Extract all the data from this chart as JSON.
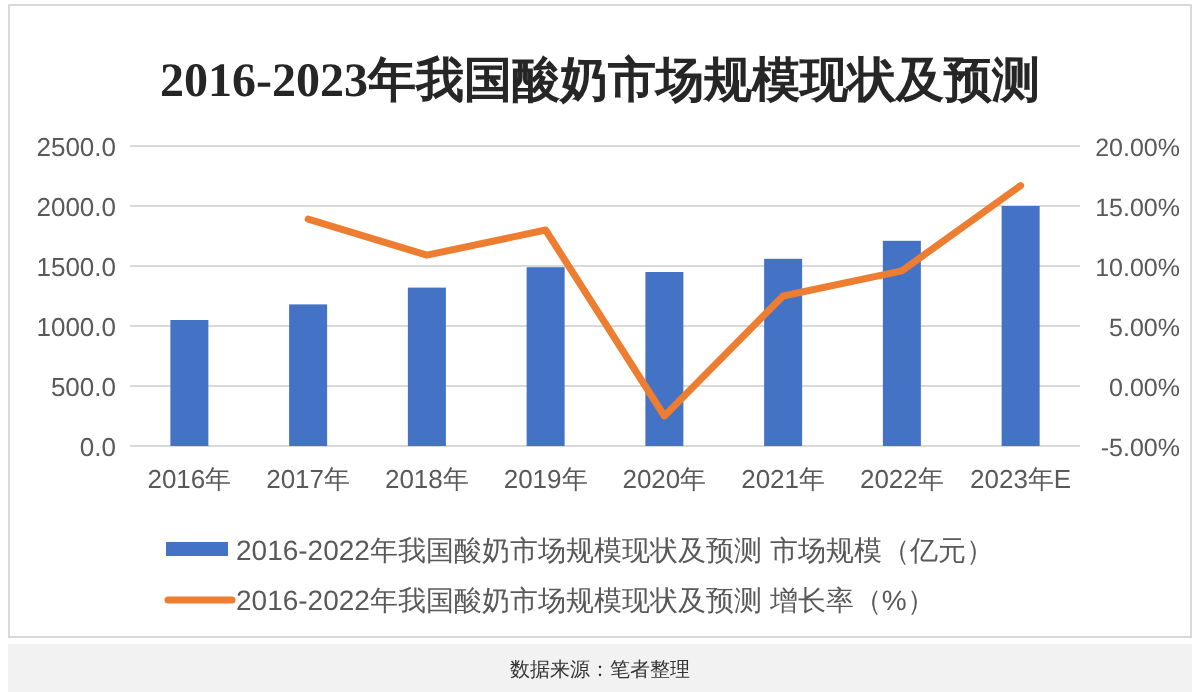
{
  "chart_data": {
    "type": "bar",
    "title": "2016-2023年我国酸奶市场规模现状及预测",
    "categories": [
      "2016年",
      "2017年",
      "2018年",
      "2019年",
      "2020年",
      "2021年",
      "2022年",
      "2023年E"
    ],
    "series": [
      {
        "name": "2016-2022年我国酸奶市场规模现状及预测 市场规模（亿元）",
        "color": "#4472c4",
        "values": [
          1050,
          1180,
          1320,
          1490,
          1450,
          1560,
          1710,
          2000
        ]
      },
      {
        "name": "2016-2022年我国酸奶市场规模现状及预测 增长率（%）",
        "type": "line",
        "axis": "y2",
        "color": "#ed7d31",
        "values": [
          null,
          13.9,
          10.9,
          13.0,
          -2.5,
          7.5,
          9.6,
          16.7
        ]
      }
    ],
    "ylim": [
      0,
      2500
    ],
    "yticks": [
      {
        "value": 0,
        "label": "0.0"
      },
      {
        "value": 500,
        "label": "500.0"
      },
      {
        "value": 1000,
        "label": "1000.0"
      },
      {
        "value": 1500,
        "label": "1500.0"
      },
      {
        "value": 2000,
        "label": "2000.0"
      },
      {
        "value": 2500,
        "label": "2500.0"
      }
    ],
    "y2lim": [
      -5,
      20
    ],
    "y2ticks": [
      {
        "value": -5,
        "label": "-5.00%"
      },
      {
        "value": 0,
        "label": "0.00%"
      },
      {
        "value": 5,
        "label": "5.00%"
      },
      {
        "value": 10,
        "label": "10.00%"
      },
      {
        "value": 15,
        "label": "15.00%"
      },
      {
        "value": 20,
        "label": "20.00%"
      }
    ],
    "grid": "y",
    "legend": "bottom",
    "annotations": [
      "数据来源：笔者整理"
    ]
  }
}
